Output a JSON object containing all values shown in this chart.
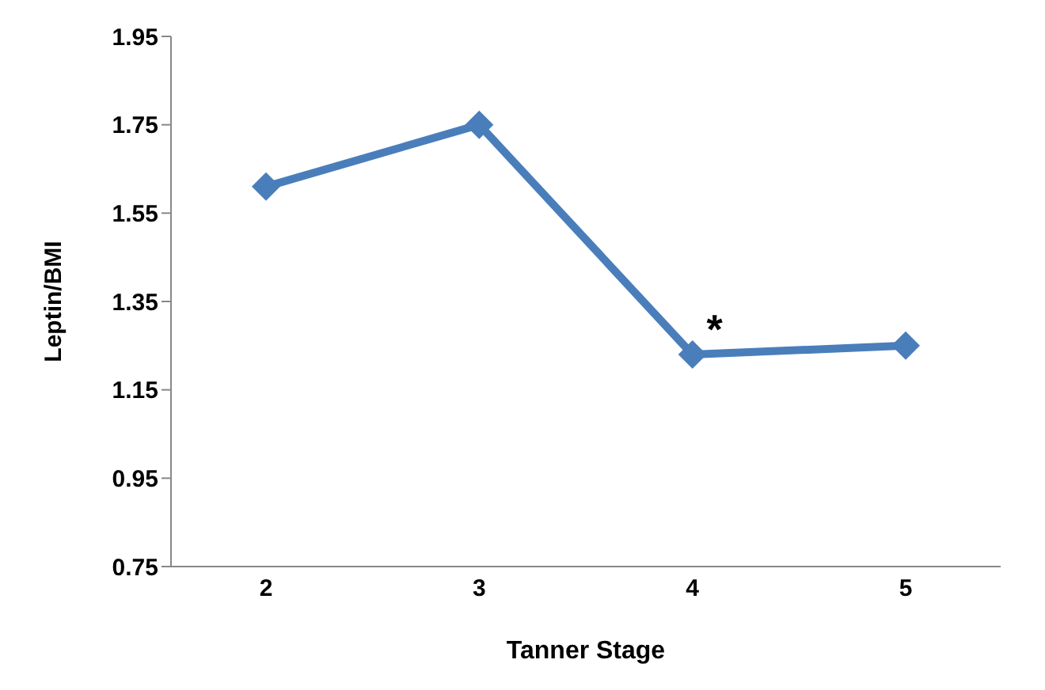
{
  "chart_data": {
    "type": "line",
    "xlabel": "Tanner Stage",
    "ylabel": "Leptin/BMI",
    "categories": [
      "2",
      "3",
      "4",
      "5"
    ],
    "series": [
      {
        "color": "#4a7ebb",
        "values": [
          1.61,
          1.75,
          1.23,
          1.25
        ]
      }
    ],
    "ylim": [
      0.75,
      1.95
    ],
    "yticks": [
      0.75,
      0.95,
      1.15,
      1.35,
      1.55,
      1.75,
      1.95
    ],
    "grid": false,
    "legend": false,
    "marker": "diamond",
    "line_style": "solid",
    "annotations": [
      {
        "text": "*",
        "x": "4",
        "y": 1.23
      }
    ]
  }
}
